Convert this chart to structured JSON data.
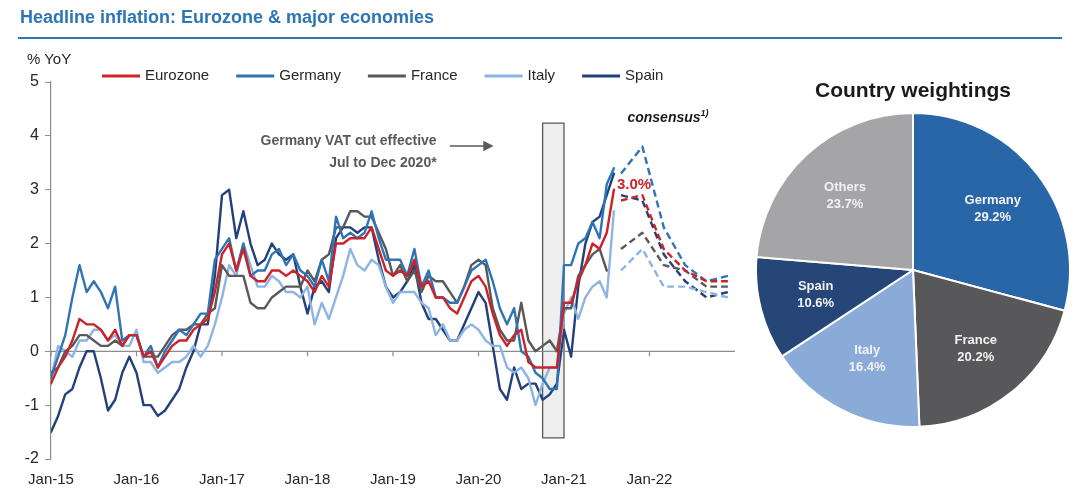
{
  "chart_data": [
    {
      "type": "line",
      "title": "Headline inflation: Eurozone & major economies",
      "ylabel": "% YoY",
      "legend": "top",
      "xlim": [
        "2015-01",
        "2023-01"
      ],
      "xticks": [
        {
          "value": "2015-01",
          "label": "Jan-15"
        },
        {
          "value": "2016-01",
          "label": "Jan-16"
        },
        {
          "value": "2017-01",
          "label": "Jan-17"
        },
        {
          "value": "2018-01",
          "label": "Jan-18"
        },
        {
          "value": "2019-01",
          "label": "Jan-19"
        },
        {
          "value": "2020-01",
          "label": "Jan-20"
        },
        {
          "value": "2021-01",
          "label": "Jan-21"
        },
        {
          "value": "2022-01",
          "label": "Jan-22"
        }
      ],
      "ylim": [
        -2,
        5
      ],
      "yticks": [
        -2,
        -1,
        0,
        1,
        2,
        3,
        4,
        5
      ],
      "x": [
        "2015-01",
        "2015-02",
        "2015-03",
        "2015-04",
        "2015-05",
        "2015-06",
        "2015-07",
        "2015-08",
        "2015-09",
        "2015-10",
        "2015-11",
        "2015-12",
        "2016-01",
        "2016-02",
        "2016-03",
        "2016-04",
        "2016-05",
        "2016-06",
        "2016-07",
        "2016-08",
        "2016-09",
        "2016-10",
        "2016-11",
        "2016-12",
        "2017-01",
        "2017-02",
        "2017-03",
        "2017-04",
        "2017-05",
        "2017-06",
        "2017-07",
        "2017-08",
        "2017-09",
        "2017-10",
        "2017-11",
        "2017-12",
        "2018-01",
        "2018-02",
        "2018-03",
        "2018-04",
        "2018-05",
        "2018-06",
        "2018-07",
        "2018-08",
        "2018-09",
        "2018-10",
        "2018-11",
        "2018-12",
        "2019-01",
        "2019-02",
        "2019-03",
        "2019-04",
        "2019-05",
        "2019-06",
        "2019-07",
        "2019-08",
        "2019-09",
        "2019-10",
        "2019-11",
        "2019-12",
        "2020-01",
        "2020-02",
        "2020-03",
        "2020-04",
        "2020-05",
        "2020-06",
        "2020-07",
        "2020-08",
        "2020-09",
        "2020-10",
        "2020-11",
        "2020-12",
        "2021-01",
        "2021-02",
        "2021-03",
        "2021-04",
        "2021-05",
        "2021-06",
        "2021-07",
        "2021-08"
      ],
      "series": [
        {
          "name": "Eurozone",
          "color": "#cc2229",
          "values": [
            -0.6,
            -0.3,
            -0.1,
            0.2,
            0.6,
            0.5,
            0.5,
            0.4,
            0.2,
            0.4,
            0.1,
            0.3,
            0.3,
            -0.1,
            0.0,
            -0.3,
            -0.1,
            0.1,
            0.2,
            0.2,
            0.4,
            0.5,
            0.6,
            1.1,
            1.8,
            2.0,
            1.5,
            1.9,
            1.4,
            1.3,
            1.3,
            1.5,
            1.5,
            1.4,
            1.5,
            1.4,
            1.3,
            1.1,
            1.4,
            1.2,
            2.0,
            2.0,
            2.1,
            2.1,
            2.1,
            2.3,
            1.9,
            1.5,
            1.4,
            1.5,
            1.4,
            1.7,
            1.2,
            1.3,
            1.0,
            1.0,
            0.8,
            0.7,
            1.0,
            1.3,
            1.4,
            1.2,
            0.7,
            0.3,
            0.1,
            0.3,
            0.4,
            -0.2,
            -0.3,
            -0.3,
            -0.3,
            -0.3,
            0.9,
            0.9,
            1.3,
            1.6,
            2.0,
            1.9,
            2.2,
            3.0
          ],
          "value_labels": [
            null,
            null,
            null,
            null,
            null,
            null,
            null,
            null,
            null,
            null,
            null,
            null,
            null,
            null,
            null,
            null,
            null,
            null,
            null,
            null,
            null,
            null,
            null,
            null,
            null,
            null,
            null,
            null,
            null,
            null,
            null,
            null,
            null,
            null,
            null,
            null,
            null,
            null,
            null,
            null,
            null,
            null,
            null,
            null,
            null,
            null,
            null,
            null,
            null,
            null,
            null,
            null,
            null,
            null,
            null,
            null,
            null,
            null,
            null,
            null,
            null,
            null,
            null,
            null,
            null,
            null,
            null,
            null,
            null,
            null,
            null,
            null,
            null,
            null,
            null,
            null,
            null,
            null,
            null,
            "3.0%"
          ]
        },
        {
          "name": "Germany",
          "color": "#2e75b6",
          "values": [
            -0.5,
            -0.1,
            0.3,
            1.0,
            1.6,
            1.1,
            1.3,
            1.1,
            0.8,
            1.2,
            0.2,
            0.3,
            0.3,
            -0.1,
            0.1,
            -0.3,
            0.0,
            0.2,
            0.4,
            0.3,
            0.5,
            0.7,
            0.7,
            1.7,
            1.9,
            2.1,
            1.5,
            2.0,
            1.4,
            1.5,
            1.5,
            1.8,
            1.9,
            1.6,
            1.8,
            1.5,
            1.4,
            1.2,
            1.7,
            1.3,
            2.5,
            2.1,
            2.2,
            2.1,
            2.2,
            2.6,
            2.1,
            1.7,
            1.7,
            1.7,
            1.4,
            1.9,
            1.2,
            1.5,
            1.0,
            1.0,
            0.9,
            0.9,
            1.2,
            1.5,
            1.6,
            1.7,
            1.3,
            0.8,
            0.5,
            0.8,
            0.0,
            -0.1,
            -0.4,
            -0.5,
            -0.7,
            -0.7,
            1.6,
            1.6,
            2.0,
            2.1,
            2.4,
            2.1,
            3.1,
            3.4
          ]
        },
        {
          "name": "France",
          "color": "#595959",
          "values": [
            -0.4,
            -0.3,
            0.0,
            0.1,
            0.3,
            0.3,
            0.2,
            0.1,
            0.1,
            0.2,
            0.1,
            0.3,
            0.3,
            -0.1,
            -0.1,
            -0.1,
            0.1,
            0.3,
            0.4,
            0.4,
            0.5,
            0.5,
            0.7,
            0.8,
            1.6,
            1.4,
            1.4,
            1.4,
            0.9,
            0.8,
            0.8,
            1.0,
            1.1,
            1.2,
            1.2,
            1.2,
            1.5,
            1.3,
            1.7,
            1.8,
            2.3,
            2.3,
            2.6,
            2.6,
            2.5,
            2.5,
            2.2,
            1.9,
            1.4,
            1.6,
            1.3,
            1.5,
            1.1,
            1.4,
            1.3,
            1.3,
            1.1,
            0.9,
            1.2,
            1.6,
            1.7,
            1.6,
            0.8,
            0.4,
            0.2,
            0.2,
            0.9,
            0.2,
            0.0,
            0.1,
            0.2,
            0.0,
            0.8,
            0.8,
            1.4,
            1.6,
            1.8,
            1.9,
            1.5,
            null
          ]
        },
        {
          "name": "Italy",
          "color": "#8eb4e3",
          "values": [
            -0.5,
            0.1,
            0.0,
            -0.1,
            0.2,
            0.2,
            0.4,
            0.4,
            0.2,
            0.3,
            0.1,
            0.1,
            0.4,
            -0.2,
            -0.2,
            -0.4,
            -0.3,
            -0.2,
            -0.2,
            -0.1,
            0.1,
            -0.1,
            0.1,
            0.5,
            1.0,
            1.6,
            1.4,
            2.0,
            1.6,
            1.2,
            1.2,
            1.4,
            1.3,
            1.1,
            1.1,
            1.0,
            1.2,
            0.5,
            0.9,
            0.6,
            1.0,
            1.4,
            1.9,
            1.6,
            1.5,
            1.7,
            1.6,
            1.2,
            0.9,
            1.1,
            1.1,
            1.1,
            0.9,
            0.8,
            0.3,
            0.5,
            0.2,
            0.2,
            0.4,
            0.5,
            0.4,
            0.2,
            0.1,
            0.1,
            -0.3,
            -0.4,
            -0.3,
            -0.5,
            -1.0,
            -0.6,
            -0.3,
            -0.3,
            0.7,
            1.0,
            0.6,
            1.0,
            1.2,
            1.3,
            1.0,
            2.6
          ]
        },
        {
          "name": "Spain",
          "color": "#23407a",
          "values": [
            -1.5,
            -1.2,
            -0.8,
            -0.7,
            -0.3,
            0.0,
            0.0,
            -0.5,
            -1.1,
            -0.9,
            -0.4,
            -0.1,
            -0.4,
            -1.0,
            -1.0,
            -1.2,
            -1.1,
            -0.9,
            -0.7,
            -0.3,
            0.0,
            0.5,
            0.5,
            1.4,
            2.9,
            3.0,
            2.1,
            2.6,
            2.0,
            1.6,
            1.7,
            2.0,
            1.8,
            1.7,
            1.8,
            1.2,
            0.7,
            1.2,
            1.3,
            1.1,
            2.1,
            2.3,
            2.3,
            2.2,
            2.3,
            2.3,
            1.7,
            1.2,
            1.0,
            1.1,
            1.3,
            1.6,
            0.9,
            0.6,
            0.6,
            0.4,
            0.2,
            0.2,
            0.5,
            0.8,
            1.1,
            0.9,
            0.1,
            -0.7,
            -0.9,
            -0.3,
            -0.7,
            -0.6,
            -0.6,
            -0.9,
            -0.8,
            -0.6,
            0.4,
            -0.1,
            1.2,
            2.0,
            2.4,
            2.5,
            2.9,
            3.3
          ]
        },
        {
          "color": "#cc2229",
          "line_style": "dashed",
          "x": [
            "2021-09",
            "2021-12",
            "2022-03",
            "2022-06",
            "2022-09",
            "2022-12"
          ],
          "values": [
            2.8,
            2.9,
            1.9,
            1.5,
            1.3,
            1.3
          ]
        },
        {
          "color": "#2e75b6",
          "line_style": "dashed",
          "x": [
            "2021-09",
            "2021-12",
            "2022-03",
            "2022-06",
            "2022-09",
            "2022-12"
          ],
          "values": [
            3.3,
            3.8,
            2.3,
            1.6,
            1.3,
            1.4
          ]
        },
        {
          "color": "#595959",
          "line_style": "dashed",
          "x": [
            "2021-09",
            "2021-12",
            "2022-03",
            "2022-06",
            "2022-09",
            "2022-12"
          ],
          "values": [
            1.9,
            2.2,
            1.6,
            1.5,
            1.2,
            1.2
          ]
        },
        {
          "color": "#8eb4e3",
          "line_style": "dashed",
          "x": [
            "2021-09",
            "2021-12",
            "2022-03",
            "2022-06",
            "2022-09",
            "2022-12"
          ],
          "values": [
            1.5,
            1.9,
            1.2,
            1.2,
            1.1,
            1.0
          ]
        },
        {
          "color": "#23407a",
          "line_style": "dashed",
          "x": [
            "2021-09",
            "2021-12",
            "2022-03",
            "2022-06",
            "2022-09",
            "2022-12"
          ],
          "values": [
            2.9,
            2.8,
            1.8,
            1.3,
            1.0,
            1.1
          ]
        }
      ],
      "bands": [
        {
          "axis": "x",
          "from": "2020-10",
          "to": "2021-01",
          "color": "#595959"
        }
      ],
      "annotations": [
        "Germany VAT cut effective Jul to Dec 2020*",
        "consensus$^{1)}$"
      ]
    },
    {
      "type": "pie",
      "title": "Country weightings",
      "categories": [
        "Germany",
        "France",
        "Italy",
        "Spain",
        "Others"
      ],
      "values": [
        29.2,
        20.2,
        16.4,
        10.6,
        23.7
      ],
      "colors": [
        "#2866a8",
        "#58585a",
        "#8aabd8",
        "#264677",
        "#a5a5a8"
      ],
      "value_labels": [
        "29.2%",
        "20.2%",
        "16.4%",
        "10.6%",
        "23.7%"
      ]
    }
  ]
}
